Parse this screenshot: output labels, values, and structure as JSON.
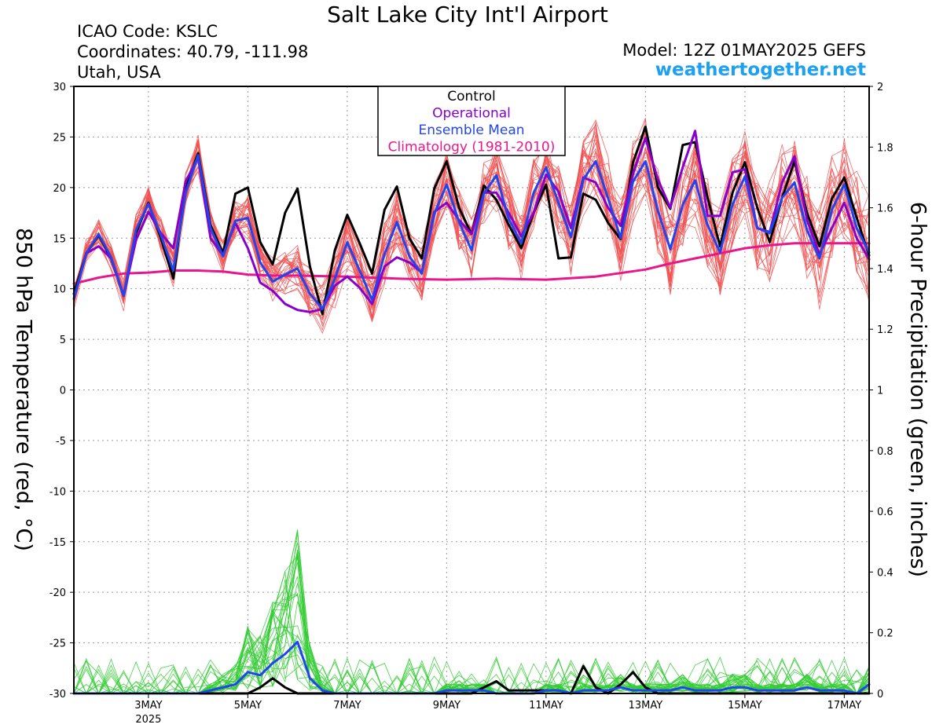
{
  "header": {
    "title": "Salt Lake City Int'l Airport",
    "icao": "ICAO Code: KSLC",
    "coordinates": "Coordinates: 40.79, -111.98",
    "location": "Utah, USA",
    "model": "Model: 12Z 01MAY2025 GEFS",
    "site": "weathertogether.net"
  },
  "colors": {
    "control": "#000000",
    "operational": "#8800cc",
    "ensemble_mean": "#2244ee",
    "climatology": "#e8188c",
    "members_temp": "#f05050",
    "members_precip": "#33cc33",
    "site": "#1ea0f0"
  },
  "chart_data": {
    "type": "line",
    "title": "Salt Lake City Int'l Airport",
    "ylabel": "850 hPa Temperature (red, °C)",
    "y2label": "6-hour Precipitation (green, inches)",
    "ylim": [
      -30,
      30
    ],
    "y2lim": [
      0,
      2
    ],
    "yticks": [
      "30",
      "25",
      "20",
      "15",
      "10",
      "5",
      "0",
      "-5",
      "-10",
      "-15",
      "-20",
      "-25",
      "-30"
    ],
    "y2ticks": [
      "2",
      "1.8",
      "1.6",
      "1.4",
      "1.2",
      "1",
      "0.8",
      "0.6",
      "0.4",
      "0.2",
      "0"
    ],
    "x_unit": "days since 01MAY2025 00Z",
    "xlim": [
      1.5,
      17.5
    ],
    "xticks": [
      {
        "label": "3MAY",
        "sub": "2025",
        "x": 3
      },
      {
        "label": "5MAY",
        "sub": "",
        "x": 5
      },
      {
        "label": "7MAY",
        "sub": "",
        "x": 7
      },
      {
        "label": "9MAY",
        "sub": "",
        "x": 9
      },
      {
        "label": "11MAY",
        "sub": "",
        "x": 11
      },
      {
        "label": "13MAY",
        "sub": "",
        "x": 13
      },
      {
        "label": "15MAY",
        "sub": "",
        "x": 15
      },
      {
        "label": "17MAY",
        "sub": "",
        "x": 17
      }
    ],
    "grid": true,
    "legend": {
      "position": "top-center",
      "entries": [
        "Control",
        "Operational",
        "Ensemble Mean",
        "Climatology (1981-2010)"
      ]
    },
    "series": [
      {
        "name": "Control",
        "axis": "left",
        "y": [
          9.5,
          13.5,
          15.3,
          13.0,
          9.3,
          15.5,
          18.5,
          15.0,
          11.0,
          20.0,
          23.4,
          16.3,
          13.5,
          19.4,
          20.0,
          14.6,
          12.4,
          17.5,
          19.9,
          12.2,
          7.5,
          13.8,
          17.3,
          14.5,
          11.5,
          17.8,
          20.1,
          15.0,
          13.0,
          19.9,
          22.6,
          18.0,
          15.4,
          20.2,
          18.8,
          16.3,
          14.0,
          17.5,
          20.3,
          13.0,
          13.1,
          19.4,
          18.8,
          16.5,
          14.9,
          22.5,
          26.0,
          20.0,
          17.9,
          24.2,
          24.5,
          19.0,
          14.2,
          19.5,
          22.5,
          18.0,
          14.6,
          19.0,
          22.6,
          17.5,
          14.2,
          18.9,
          21.0,
          17.0,
          13.3
        ]
      },
      {
        "name": "Operational",
        "axis": "left",
        "y": [
          9.0,
          13.5,
          14.2,
          13.0,
          9.3,
          14.8,
          17.6,
          15.5,
          14.0,
          20.6,
          23.0,
          15.0,
          13.3,
          16.5,
          14.0,
          10.6,
          9.8,
          8.5,
          7.9,
          7.7,
          8.0,
          10.3,
          11.2,
          10.1,
          8.5,
          12.2,
          13.1,
          12.6,
          11.6,
          17.6,
          18.5,
          16.8,
          15.4,
          19.5,
          19.5,
          17.5,
          15.2,
          17.5,
          21.3,
          19.6,
          16.0,
          21.0,
          20.5,
          18.0,
          16.2,
          21.4,
          24.9,
          20.8,
          18.0,
          22.0,
          25.6,
          17.2,
          17.2,
          21.5,
          21.8,
          16.0,
          15.6,
          20.5,
          23.1,
          16.8,
          13.4,
          16.0,
          18.5,
          15.0,
          12.9
        ]
      },
      {
        "name": "Ensemble Mean",
        "axis": "left",
        "y": [
          9.0,
          13.5,
          15.4,
          13.1,
          9.3,
          15.8,
          18.4,
          15.3,
          11.8,
          19.5,
          23.2,
          16.0,
          13.2,
          16.7,
          17.0,
          12.6,
          10.7,
          11.4,
          12.0,
          9.5,
          8.0,
          11.0,
          14.6,
          11.8,
          8.9,
          13.4,
          16.6,
          13.2,
          11.5,
          17.4,
          20.3,
          16.6,
          13.8,
          19.4,
          21.2,
          16.9,
          14.5,
          19.5,
          22.0,
          18.5,
          15.1,
          20.8,
          22.6,
          18.9,
          15.0,
          20.6,
          22.6,
          17.7,
          13.9,
          18.3,
          20.7,
          16.3,
          13.6,
          18.3,
          21.1,
          16.0,
          15.5,
          19.0,
          20.5,
          15.8,
          13.0,
          17.8,
          20.3,
          16.0,
          13.6
        ]
      },
      {
        "name": "Climatology (1981-2010)",
        "axis": "left",
        "x": [
          1.5,
          2.0,
          2.5,
          3.0,
          3.5,
          4.0,
          4.5,
          5.0,
          5.5,
          6.0,
          7.0,
          8.0,
          9.0,
          10.0,
          11.0,
          12.0,
          13.0,
          13.5,
          14.0,
          14.5,
          15.0,
          15.5,
          16.0,
          16.5,
          17.0,
          17.5
        ],
        "y": [
          10.5,
          11.1,
          11.5,
          11.6,
          11.8,
          11.8,
          11.7,
          11.4,
          11.3,
          11.3,
          11.2,
          11.0,
          10.9,
          11.0,
          10.9,
          11.2,
          11.9,
          12.5,
          13.0,
          13.5,
          14.0,
          14.3,
          14.5,
          14.5,
          14.5,
          14.5
        ]
      },
      {
        "name": "Control",
        "axis": "right",
        "values_per_step": "precip",
        "y": [
          0,
          0,
          0,
          0,
          0,
          0,
          0,
          0,
          0,
          0,
          0,
          0,
          0,
          0,
          0,
          0.02,
          0.05,
          0.02,
          0,
          0,
          0,
          0,
          0,
          0,
          0,
          0,
          0,
          0,
          0,
          0,
          0,
          0,
          0,
          0.02,
          0.04,
          0.01,
          0.01,
          0.01,
          0.01,
          0.01,
          0,
          0.09,
          0.02,
          0,
          0.03,
          0.07,
          0.02,
          0,
          0,
          0,
          0,
          0,
          0,
          0,
          0,
          0,
          0,
          0,
          0,
          0,
          0,
          0,
          0,
          0,
          0
        ]
      },
      {
        "name": "Ensemble Mean",
        "axis": "right",
        "values_per_step": "precip",
        "y": [
          0,
          0,
          0,
          0,
          0,
          0,
          0,
          0,
          0,
          0,
          0,
          0.01,
          0.02,
          0.03,
          0.07,
          0.06,
          0.1,
          0.13,
          0.17,
          0.05,
          0.01,
          0,
          0,
          0,
          0,
          0,
          0,
          0,
          0,
          0,
          0.01,
          0.01,
          0.01,
          0.01,
          0,
          0,
          0,
          0,
          0.01,
          0.01,
          0,
          0.01,
          0.01,
          0.01,
          0.02,
          0.01,
          0.01,
          0.01,
          0.01,
          0.02,
          0.01,
          0.01,
          0.01,
          0.02,
          0.02,
          0.01,
          0.01,
          0.01,
          0.01,
          0.02,
          0.01,
          0.01,
          0.01,
          0,
          0.03
        ]
      }
    ]
  }
}
